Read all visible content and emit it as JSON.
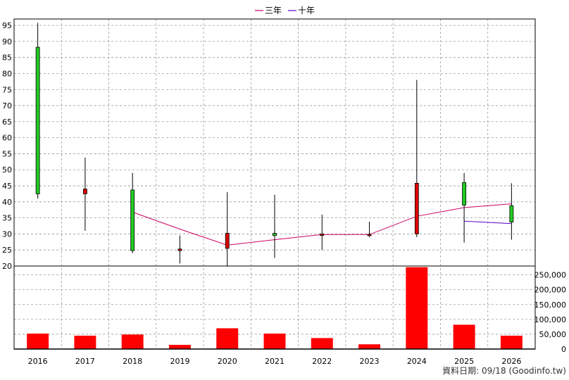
{
  "chart_data": {
    "type": "candlestick+bar",
    "categories": [
      "2016",
      "2017",
      "2018",
      "2019",
      "2020",
      "2021",
      "2022",
      "2023",
      "2024",
      "2025",
      "2026"
    ],
    "price": {
      "yticks": [
        20,
        25,
        30,
        35,
        40,
        45,
        50,
        55,
        60,
        65,
        70,
        75,
        80,
        85,
        90,
        95
      ],
      "ylim": [
        20,
        97
      ],
      "candles": [
        {
          "open": 42.5,
          "close": 88.2,
          "high": 95.8,
          "low": 41.0,
          "color": "#22cc22"
        },
        {
          "open": 44.0,
          "close": 42.5,
          "high": 53.8,
          "low": 31.0,
          "color": "#dd0000"
        },
        {
          "open": 24.8,
          "close": 43.7,
          "high": 49.0,
          "low": 24.0,
          "color": "#22cc22"
        },
        {
          "open": 25.3,
          "close": 24.8,
          "high": 29.5,
          "low": 20.8,
          "color": "#dd0000"
        },
        {
          "open": 30.2,
          "close": 25.5,
          "high": 43.0,
          "low": 19.8,
          "color": "#dd0000"
        },
        {
          "open": 29.5,
          "close": 30.2,
          "high": 42.2,
          "low": 22.5,
          "color": "#22cc22"
        },
        {
          "open": 30.0,
          "close": 29.5,
          "high": 36.0,
          "low": 25.0,
          "color": "#dd0000"
        },
        {
          "open": 29.9,
          "close": 29.7,
          "high": 33.8,
          "low": 29.0,
          "color": "#dd0000"
        },
        {
          "open": 45.8,
          "close": 30.0,
          "high": 78.0,
          "low": 29.0,
          "color": "#dd0000"
        },
        {
          "open": 39.0,
          "close": 46.0,
          "high": 49.0,
          "low": 27.3,
          "color": "#22cc22"
        },
        {
          "open": 33.7,
          "close": 38.8,
          "high": 45.8,
          "low": 28.2,
          "color": "#22cc22"
        }
      ],
      "series": [
        {
          "name": "三年",
          "color": "#cc0066",
          "values": [
            null,
            null,
            36.8,
            31.5,
            26.5,
            28.2,
            29.8,
            29.8,
            35.5,
            38.2,
            39.4
          ]
        },
        {
          "name": "十年",
          "color": "#5500cc",
          "values": [
            null,
            null,
            null,
            null,
            null,
            null,
            null,
            null,
            null,
            34.0,
            33.2
          ]
        }
      ]
    },
    "volume": {
      "yticks": [
        0,
        50000,
        100000,
        150000,
        200000,
        250000
      ],
      "ytick_labels": [
        "0",
        "50,000",
        "100,000",
        "150,000",
        "200,000",
        "250,000"
      ],
      "ylim": [
        0,
        280000
      ],
      "values": [
        52000,
        45000,
        49000,
        14000,
        70000,
        52000,
        37000,
        16000,
        276000,
        82000,
        45000
      ],
      "color": "#ff0000"
    }
  },
  "legend": [
    {
      "label": "三年",
      "color": "#cc0066"
    },
    {
      "label": "十年",
      "color": "#5500cc"
    }
  ],
  "footer": "資料日期: 09/18  (Goodinfo.tw)"
}
